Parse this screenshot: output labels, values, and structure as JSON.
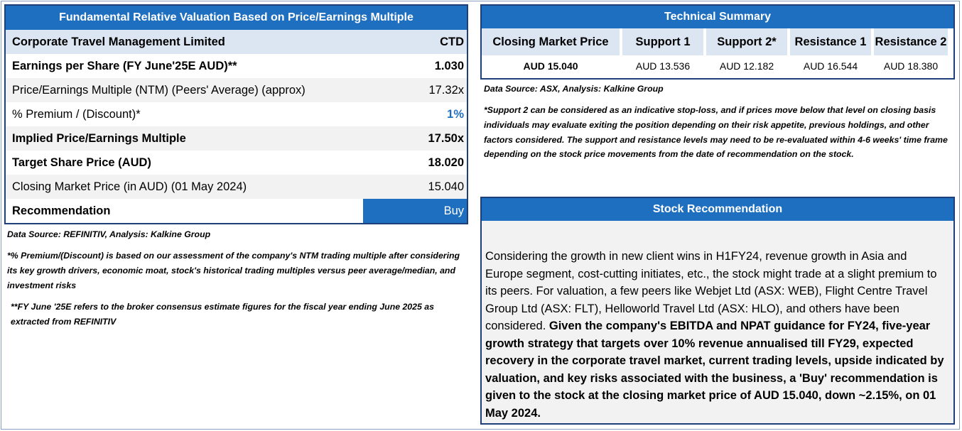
{
  "valuation": {
    "title": "Fundamental Relative Valuation Based on Price/Earnings Multiple",
    "company": {
      "label": "Corporate Travel Management Limited",
      "value": "CTD"
    },
    "rows": [
      {
        "label": "Earnings per Share (FY June'25E AUD)**",
        "value": "1.030"
      },
      {
        "label": "Price/Earnings Multiple (NTM)  (Peers' Average) (approx)",
        "value": "17.32x"
      },
      {
        "label": "% Premium / (Discount)*",
        "value": "1%"
      },
      {
        "label": "Implied Price/Earnings Multiple",
        "value": "17.50x"
      },
      {
        "label": "Target Share Price (AUD)",
        "value": "18.020"
      },
      {
        "label": "Closing Market Price (in AUD) (01 May 2024)",
        "value": "15.040"
      }
    ],
    "recommendation": {
      "label": "Recommendation",
      "value": "Buy"
    },
    "data_source": "Data Source: REFINITIV, Analysis: Kalkine Group",
    "note1": "*% Premium/(Discount) is based on our assessment of the company's NTM trading multiple after considering its key growth drivers, economic moat, stock's historical trading multiples versus peer average/median, and investment risks",
    "note2": "**FY June '25E refers to the broker consensus estimate figures for the fiscal year ending June 2025  as extracted from REFINITIV"
  },
  "technical": {
    "title": "Technical Summary",
    "columns": [
      {
        "header": "Closing Market Price",
        "value": "AUD 15.040"
      },
      {
        "header": "Support 1",
        "value": "AUD 13.536"
      },
      {
        "header": "Support 2*",
        "value": "AUD 12.182"
      },
      {
        "header": "Resistance 1",
        "value": "AUD 16.544"
      },
      {
        "header": "Resistance 2",
        "value": "AUD 18.380"
      }
    ],
    "data_source": "Data Source: ASX, Analysis: Kalkine Group",
    "note": "*Support 2 can be considered as an indicative stop-loss, and if prices move below that level on closing basis individuals may evaluate exiting the position depending on their risk appetite, previous holdings, and other factors considered. The support and resistance levels may need to be re-evaluated within 4-6 weeks' time frame depending on the stock price movements from the date of recommendation on the stock."
  },
  "stock_recommendation": {
    "title": "Stock Recommendation",
    "text_normal": "Considering the growth in new client wins in H1FY24, revenue growth in Asia and Europe segment, cost-cutting initiates, etc., the stock might trade at a slight premium to its peers. For valuation, a few peers like Webjet Ltd (ASX: WEB), Flight Centre Travel Group Ltd (ASX: FLT), Helloworld Travel Ltd (ASX: HLO), and others have been considered. ",
    "text_bold": "Given the company's EBITDA and NPAT guidance for FY24, five-year growth strategy that targets over 10% revenue annualised till FY29, expected recovery in the corporate travel market, current trading levels, upside indicated by valuation, and key risks associated with the business, a 'Buy' recommendation is given to the stock at the closing market price of AUD 15.040, down ~2.15%, on 01 May 2024."
  },
  "colors": {
    "header_blue": "#1f6fc0",
    "border_navy": "#1f3f7a",
    "subheader_blue": "#dce6f2",
    "row_shade": "#f2f2f2"
  }
}
